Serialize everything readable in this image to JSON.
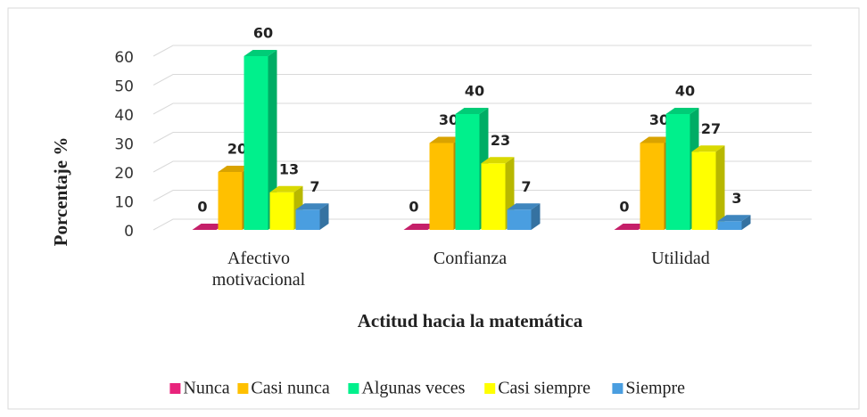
{
  "chart_data": {
    "type": "bar3d",
    "x_label": "Actitud hacia la matemática",
    "y_label": "Porcentaje %",
    "categories": [
      "Afectivo motivacional",
      "Confianza",
      "Utilidad"
    ],
    "series": [
      {
        "name": "Nunca",
        "color": "#e8247c",
        "values": [
          0,
          0,
          0
        ]
      },
      {
        "name": "Casi nunca",
        "color": "#ffc000",
        "values": [
          20,
          30,
          30
        ]
      },
      {
        "name": "Algunas veces",
        "color": "#00f08c",
        "values": [
          60,
          40,
          40
        ]
      },
      {
        "name": "Casi siempre",
        "color": "#ffff00",
        "values": [
          13,
          23,
          27
        ]
      },
      {
        "name": "Siempre",
        "color": "#4a9ee0",
        "values": [
          7,
          7,
          3
        ]
      }
    ],
    "ylim": [
      0,
      60
    ],
    "yticks": [
      0,
      10,
      20,
      30,
      40,
      50,
      60
    ],
    "grid": true,
    "legend": "bottom"
  }
}
